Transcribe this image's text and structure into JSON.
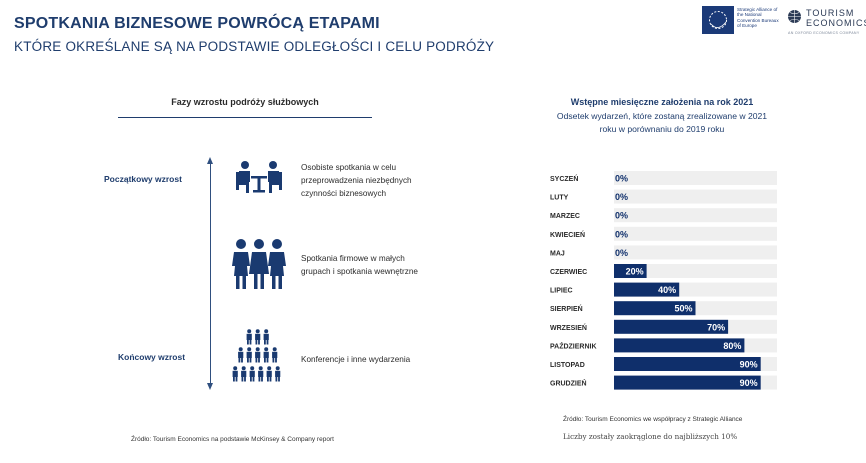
{
  "header": {
    "title": "SPOTKANIA BIZNESOWE POWRÓCĄ ETAPAMI",
    "subtitle": "KTÓRE OKREŚLANE SĄ NA PODSTAWIE ODLEGŁOŚCI I CELU PODRÓŻY"
  },
  "logos": {
    "strategic_alliance": "Strategic Alliance of the National Convention Bureaux of Europe",
    "tourism_line1": "TOURISM",
    "tourism_line2": "ECONOMICS",
    "tourism_tagline": "AN OXFORD ECONOMICS COMPANY"
  },
  "phases": {
    "heading": "Fazy wzrostu podróży służbowych",
    "start_label": "Początkowy wzrost",
    "end_label": "Końcowy wzrost",
    "items": [
      {
        "icon": "meeting-table-icon",
        "description": "Osobiste spotkania w celu przeprowadzenia niezbędnych czynności biznesowych"
      },
      {
        "icon": "small-group-icon",
        "description": "Spotkania firmowe w małych grupach i spotkania wewnętrzne"
      },
      {
        "icon": "crowd-icon",
        "description": "Konferencje i inne wydarzenia"
      }
    ],
    "source": "Źródło: Tourism Economics na podstawie McKinsey & Company report"
  },
  "chart_data": {
    "type": "bar",
    "orientation": "horizontal",
    "title": "Wstępne miesięczne założenia na rok 2021",
    "subtitle": "Odsetek wydarzeń, które zostaną zrealizowane w 2021 roku w porównaniu do 2019 roku",
    "categories": [
      "SYCZEŃ",
      "LUTY",
      "MARZEC",
      "KWIECIEŃ",
      "MAJ",
      "CZERWIEC",
      "LIPIEC",
      "SIERPIEŃ",
      "WRZESIEŃ",
      "PAŹDZIERNIK",
      "LISTOPAD",
      "GRUDZIEŃ"
    ],
    "values": [
      0,
      0,
      0,
      0,
      0,
      20,
      40,
      50,
      70,
      80,
      90,
      90
    ],
    "value_labels": [
      "0%",
      "0%",
      "0%",
      "0%",
      "0%",
      "20%",
      "40%",
      "50%",
      "70%",
      "80%",
      "90%",
      "90%"
    ],
    "xlim": [
      0,
      100
    ],
    "grid": false,
    "colors": {
      "bar": "#0f2f6b",
      "track": "#efefef",
      "label_dark": "#0f2f6b",
      "label_light": "#ffffff"
    },
    "source": "Źródło: Tourism Economics we współpracy z Strategic Alliance",
    "note": "Liczby zostały zaokrąglone do najbliższych 10%"
  }
}
